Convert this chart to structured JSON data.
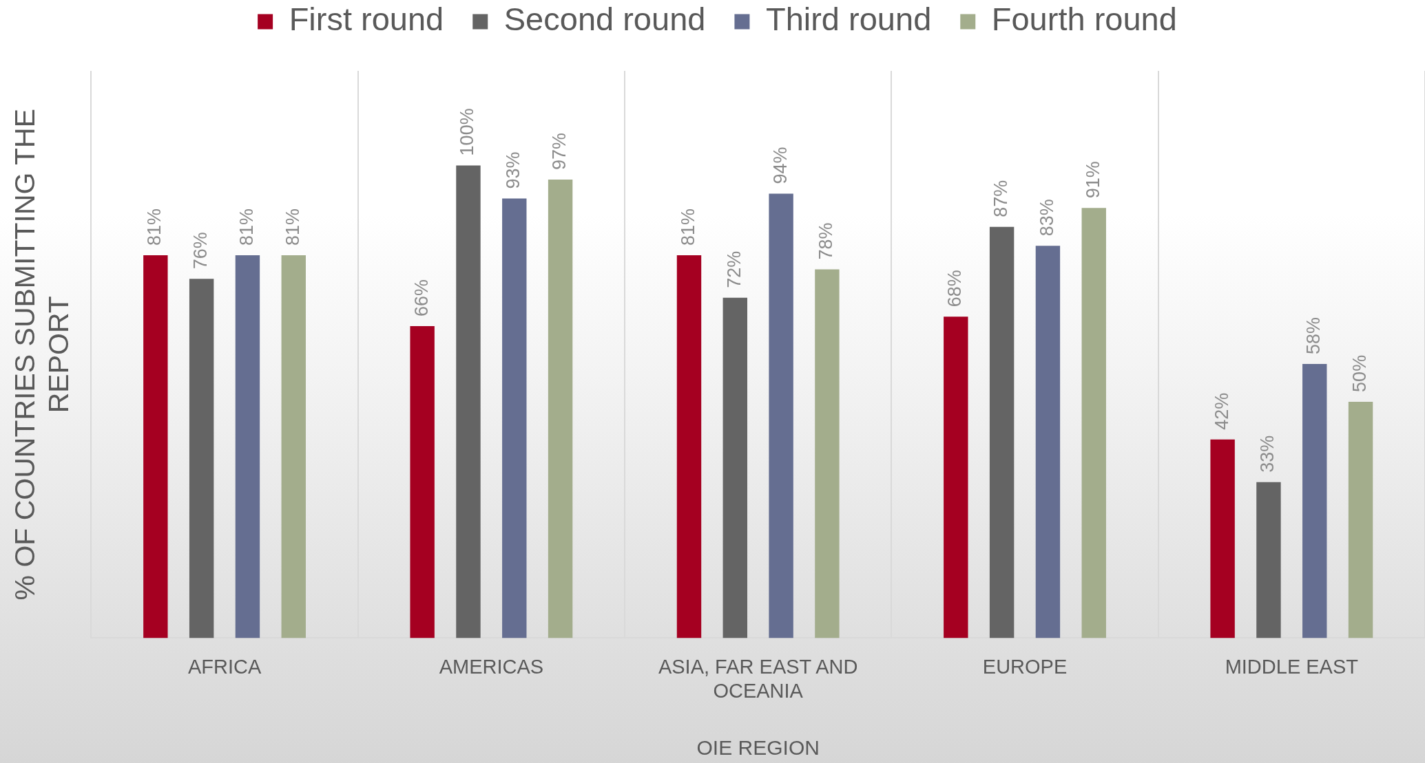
{
  "chart_data": {
    "type": "bar",
    "categories": [
      "AFRICA",
      "AMERICAS",
      "ASIA, FAR EAST AND OCEANIA",
      "EUROPE",
      "MIDDLE EAST"
    ],
    "series": [
      {
        "name": "First round",
        "color": "#a50021",
        "values": [
          81,
          66,
          81,
          68,
          42
        ],
        "value_labels": [
          "81%",
          "66%",
          "81%",
          "68%",
          "42%"
        ]
      },
      {
        "name": "Second round",
        "color": "#646464",
        "values": [
          76,
          100,
          72,
          87,
          33
        ],
        "value_labels": [
          "76%",
          "100%",
          "72%",
          "87%",
          "33%"
        ]
      },
      {
        "name": "Third round",
        "color": "#656e91",
        "values": [
          81,
          93,
          94,
          83,
          58
        ],
        "value_labels": [
          "81%",
          "93%",
          "94%",
          "83%",
          "58%"
        ]
      },
      {
        "name": "Fourth round",
        "color": "#a3ad8c",
        "values": [
          81,
          97,
          78,
          91,
          50
        ],
        "value_labels": [
          "81%",
          "97%",
          "78%",
          "91%",
          "50%"
        ]
      }
    ],
    "xlabel": "OIE REGION",
    "ylabel": "% OF COUNTRIES SUBMITTING THE REPORT",
    "ylim": [
      0,
      120
    ],
    "tick_labels": "x",
    "grid": "x",
    "legend": "top"
  }
}
